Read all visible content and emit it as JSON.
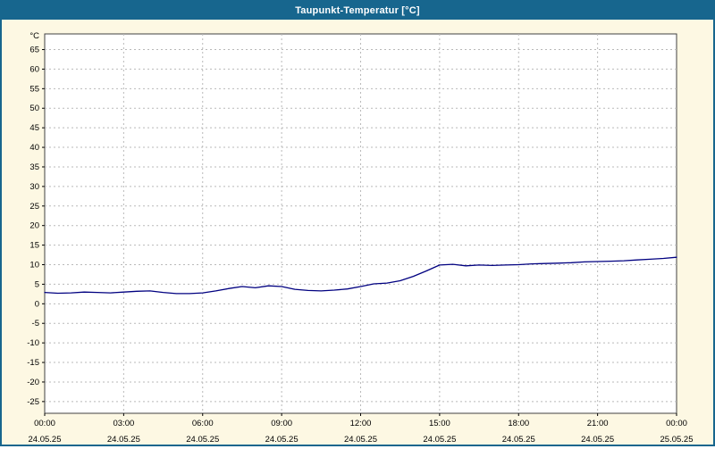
{
  "window": {
    "title": "Taupunkt-Temperatur [°C]"
  },
  "colors": {
    "titlebar": "#17668e",
    "window_border": "#17668e",
    "chart_background": "#fdf8e3",
    "plot_background": "#ffffff",
    "plot_border": "#404040",
    "grid": "#b9b9b9",
    "line": "#000080",
    "axis_text": "#000000"
  },
  "chart_data": {
    "type": "line",
    "title": "Taupunkt-Temperatur [°C]",
    "xlabel": "",
    "ylabel": "°C",
    "unit_label": "°C",
    "grid": true,
    "legend_position": "none",
    "ylim": [
      -28,
      69
    ],
    "xlim_hours": [
      0,
      24
    ],
    "yticks": [
      65,
      60,
      55,
      50,
      45,
      40,
      35,
      30,
      25,
      20,
      15,
      10,
      5,
      0,
      -5,
      -10,
      -15,
      -20,
      -25
    ],
    "xticks_hours": [
      0,
      3,
      6,
      9,
      12,
      15,
      18,
      21,
      24
    ],
    "xtick_times": [
      "00:00",
      "03:00",
      "06:00",
      "09:00",
      "12:00",
      "15:00",
      "18:00",
      "21:00",
      "00:00"
    ],
    "xtick_dates": [
      "24.05.25",
      "24.05.25",
      "24.05.25",
      "24.05.25",
      "24.05.25",
      "24.05.25",
      "24.05.25",
      "24.05.25",
      "25.05.25"
    ],
    "series": [
      {
        "name": "Taupunkt-Temperatur",
        "color": "#000080",
        "x_hours": [
          0,
          0.5,
          1,
          1.5,
          2,
          2.5,
          3,
          3.5,
          4,
          4.5,
          5,
          5.5,
          6,
          6.5,
          7,
          7.5,
          8,
          8.5,
          9,
          9.5,
          10,
          10.5,
          11,
          11.5,
          12,
          12.5,
          13,
          13.5,
          14,
          14.5,
          15,
          15.5,
          16,
          16.5,
          17,
          17.5,
          18,
          18.5,
          19,
          19.5,
          20,
          20.5,
          21,
          21.5,
          22,
          22.5,
          23,
          23.5,
          24
        ],
        "values": [
          2.9,
          2.7,
          2.8,
          3.0,
          2.9,
          2.8,
          3.0,
          3.2,
          3.3,
          2.9,
          2.6,
          2.6,
          2.8,
          3.3,
          3.9,
          4.4,
          4.1,
          4.6,
          4.4,
          3.7,
          3.4,
          3.3,
          3.5,
          3.8,
          4.4,
          5.1,
          5.3,
          5.9,
          7.0,
          8.4,
          9.9,
          10.1,
          9.7,
          9.9,
          9.8,
          9.9,
          10.0,
          10.2,
          10.3,
          10.4,
          10.5,
          10.7,
          10.8,
          10.9,
          11.0,
          11.2,
          11.4,
          11.6,
          11.9
        ]
      }
    ]
  }
}
